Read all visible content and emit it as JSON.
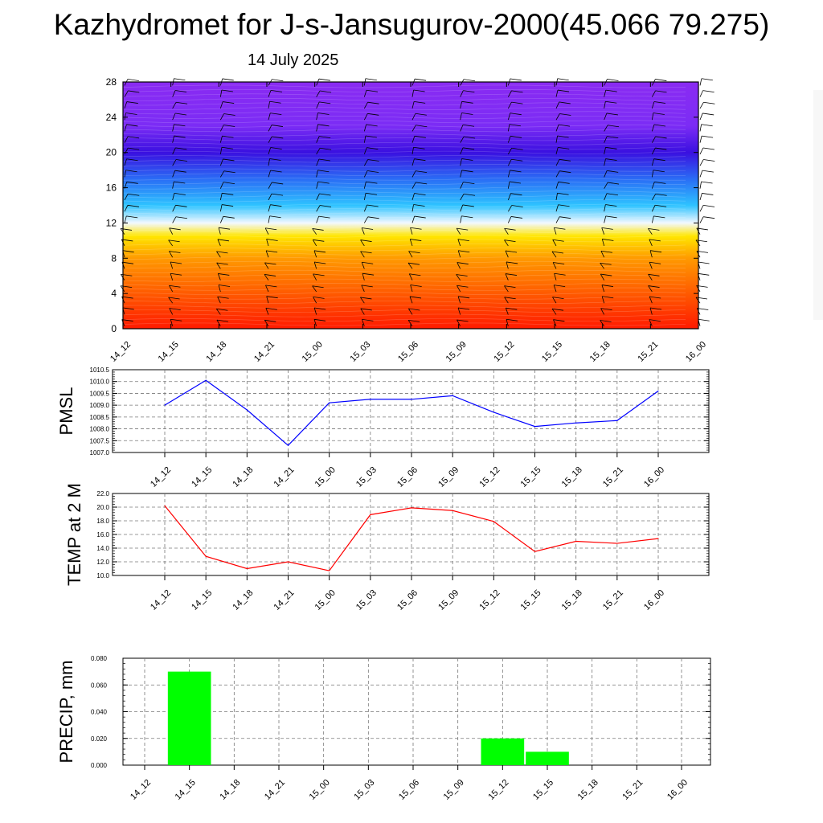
{
  "header": {
    "title": "Kazhydromet for J-s-Jansugurov-2000(45.066 79.275)",
    "date": "14 July 2025"
  },
  "colors": {
    "pmsl_line": "#0000ff",
    "temp_line": "#ff0000",
    "precip_bar": "#00ff00",
    "axis": "#000000",
    "grid": "#777777"
  },
  "chart_data": [
    {
      "type": "heatmap",
      "title": "",
      "xlabel": "",
      "ylabel": "",
      "x_categories": [
        "14_12",
        "14_15",
        "14_18",
        "14_21",
        "15_00",
        "15_03",
        "15_06",
        "15_09",
        "15_12",
        "15_15",
        "15_18",
        "15_21",
        "16_00"
      ],
      "y_ticks": [
        0,
        4,
        8,
        12,
        16,
        20,
        24,
        28
      ],
      "ylim": [
        0,
        28
      ],
      "color_bands": [
        {
          "level": 0,
          "color": "#ff1a00"
        },
        {
          "level": 4,
          "color": "#ff5a00"
        },
        {
          "level": 8,
          "color": "#ff9a00"
        },
        {
          "level": 10.5,
          "color": "#ffe600"
        },
        {
          "level": 12,
          "color": "#f2f8ff"
        },
        {
          "level": 14,
          "color": "#2ec3ff"
        },
        {
          "level": 17,
          "color": "#2a6cf5"
        },
        {
          "level": 20,
          "color": "#3a10e0"
        },
        {
          "level": 23,
          "color": "#7b2cf5"
        },
        {
          "level": 28,
          "color": "#8a2bf2"
        }
      ],
      "wind_barbs": true,
      "colorbar": {
        "colors": [
          "#f7f7f7",
          "#ff9aa0",
          "#ff2020",
          "#d80000",
          "#ff6000",
          "#ffa000",
          "#ffe000",
          "#fff8a0",
          "#ffffff",
          "#9be8ff",
          "#20c0ff",
          "#2080ff",
          "#3030ff",
          "#4a00e8",
          "#8a2be2"
        ]
      }
    },
    {
      "type": "line",
      "ylabel": "PMSL",
      "categories": [
        "14_12",
        "14_15",
        "14_18",
        "14_21",
        "15_00",
        "15_03",
        "15_06",
        "15_09",
        "15_12",
        "15_15",
        "15_18",
        "15_21",
        "16_00"
      ],
      "y_ticks": [
        "1007.0",
        "1007.5",
        "1008.0",
        "1008.5",
        "1009.0",
        "1009.5",
        "1010.0",
        "1010.5"
      ],
      "ylim": [
        1007.0,
        1010.5
      ],
      "series": [
        {
          "values": [
            1009.0,
            1010.05,
            1008.8,
            1007.3,
            1009.1,
            1009.25,
            1009.25,
            1009.4,
            1008.7,
            1008.1,
            1008.25,
            1008.35,
            1009.6
          ]
        }
      ],
      "grid": true
    },
    {
      "type": "line",
      "ylabel": "TEMP at 2 M",
      "categories": [
        "14_12",
        "14_15",
        "14_18",
        "14_21",
        "15_00",
        "15_03",
        "15_06",
        "15_09",
        "15_12",
        "15_15",
        "15_18",
        "15_21",
        "16_00"
      ],
      "y_ticks": [
        "10.0",
        "12.0",
        "14.0",
        "16.0",
        "18.0",
        "20.0",
        "22.0"
      ],
      "ylim": [
        10.0,
        22.0
      ],
      "series": [
        {
          "values": [
            20.2,
            12.8,
            11.0,
            12.0,
            10.7,
            18.9,
            19.9,
            19.5,
            17.9,
            13.5,
            15.0,
            14.7,
            15.4
          ]
        }
      ],
      "grid": true
    },
    {
      "type": "bar",
      "ylabel": "PRECIP, mm",
      "categories": [
        "14_12",
        "14_15",
        "14_18",
        "14_21",
        "15_00",
        "15_03",
        "15_06",
        "15_09",
        "15_12",
        "15_15",
        "15_18",
        "15_21",
        "16_00"
      ],
      "y_ticks": [
        "0.000",
        "0.020",
        "0.040",
        "0.060",
        "0.080"
      ],
      "ylim": [
        0,
        0.08
      ],
      "values": [
        0,
        0.07,
        0,
        0,
        0,
        0,
        0,
        0,
        0.02,
        0.01,
        0,
        0,
        0
      ],
      "grid": true
    }
  ]
}
